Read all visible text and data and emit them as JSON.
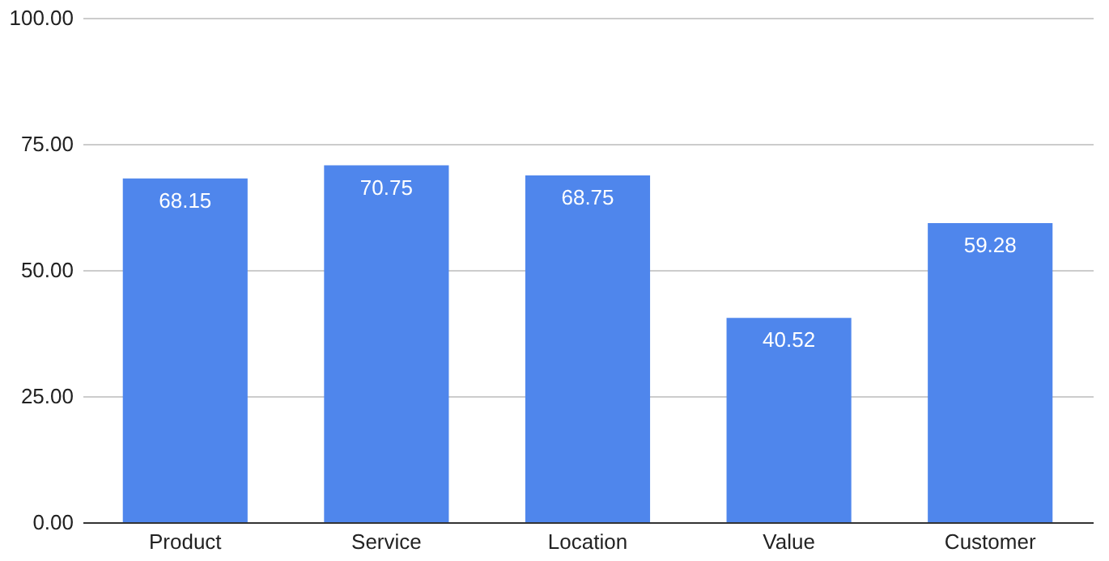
{
  "chart_data": {
    "type": "bar",
    "categories": [
      "Product",
      "Service",
      "Location",
      "Value",
      "Customer"
    ],
    "values": [
      68.15,
      70.75,
      68.75,
      40.52,
      59.28
    ],
    "color": "#4f86ec",
    "ylim": [
      0,
      100
    ],
    "yticks": [
      {
        "value": 0,
        "label": "0.00"
      },
      {
        "value": 25,
        "label": "25.00"
      },
      {
        "value": 50,
        "label": "50.00"
      },
      {
        "value": 75,
        "label": "75.00"
      },
      {
        "value": 100,
        "label": "100.00"
      }
    ],
    "grid": "y",
    "data_labels": true
  }
}
